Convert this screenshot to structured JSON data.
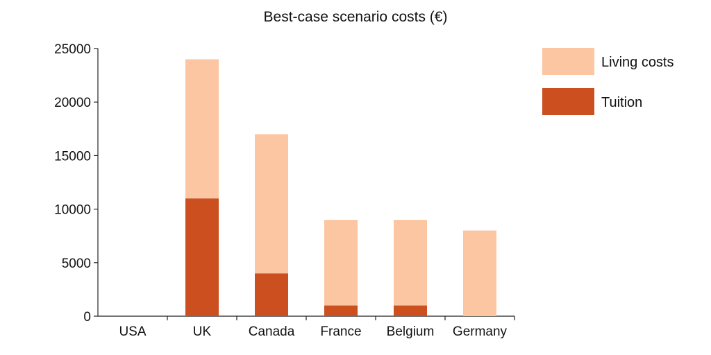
{
  "chart_data": {
    "type": "bar",
    "title": "Best-case scenario costs (€)",
    "xlabel": "",
    "ylabel": "",
    "categories": [
      "USA",
      "UK",
      "Canada",
      "France",
      "Belgium",
      "Germany"
    ],
    "series": [
      {
        "name": "Tuition",
        "values": [
          0,
          11000,
          4000,
          1000,
          1000,
          0
        ],
        "color": "#cc4f1f"
      },
      {
        "name": "Living costs",
        "values": [
          0,
          13000,
          13000,
          8000,
          8000,
          8000
        ],
        "color": "#fcc6a2"
      }
    ],
    "stacked": true,
    "ylim": [
      0,
      25000
    ],
    "yticks": [
      0,
      5000,
      10000,
      15000,
      20000,
      25000
    ],
    "grid": false,
    "legend_position": "top-right",
    "legend_order": [
      "Living costs",
      "Tuition"
    ]
  }
}
